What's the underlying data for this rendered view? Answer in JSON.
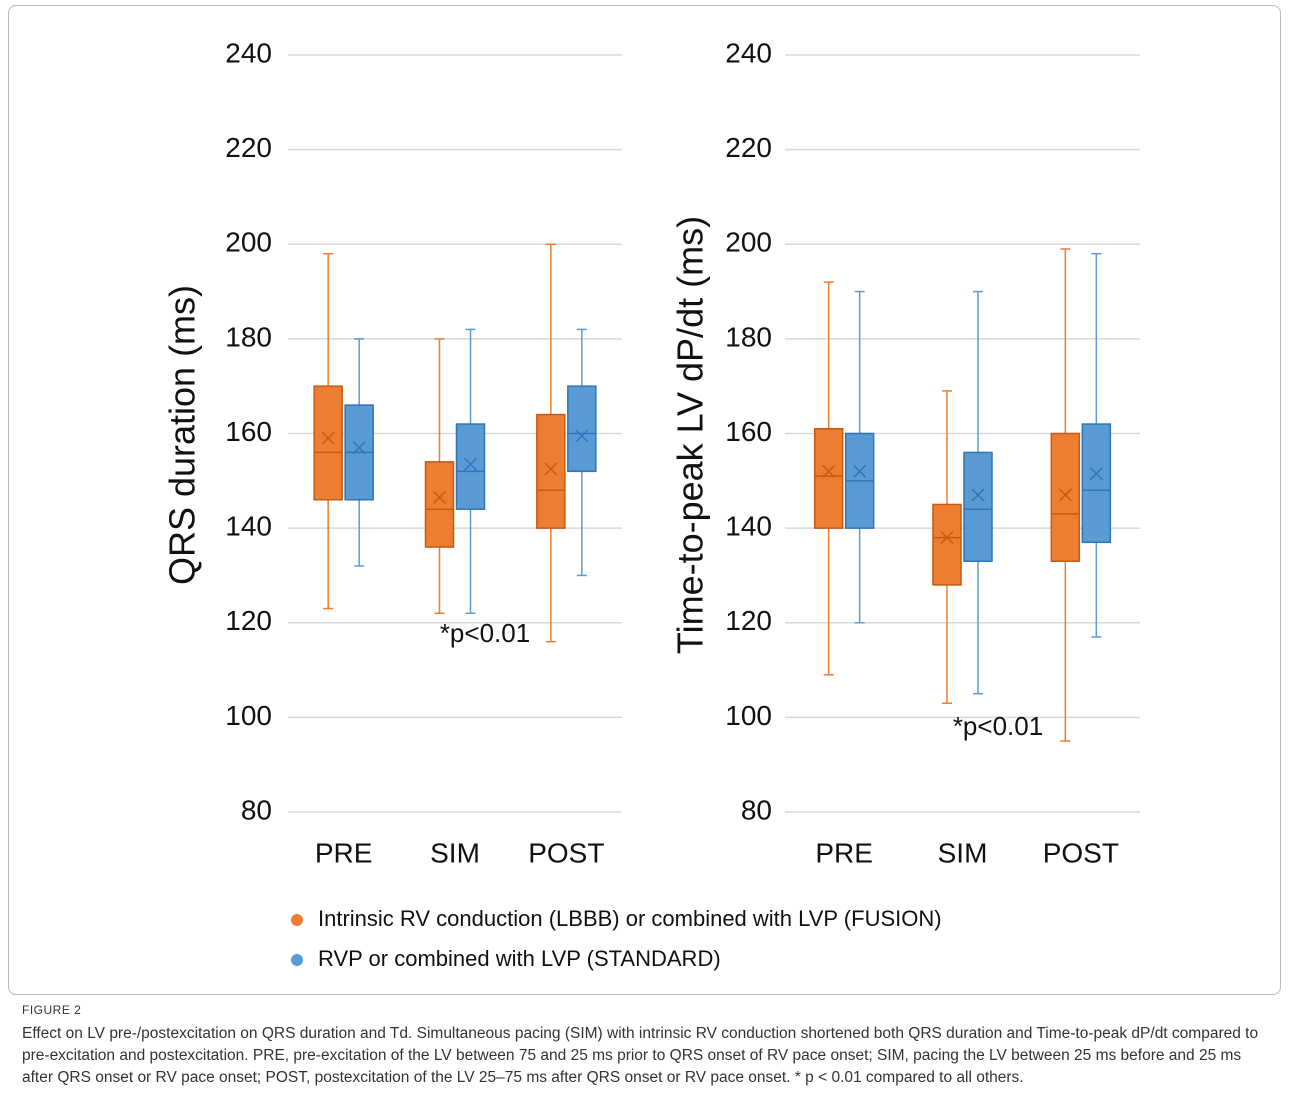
{
  "chart_data": [
    {
      "type": "box",
      "ylabel": "QRS duration (ms)",
      "categories": [
        "PRE",
        "SIM",
        "POST"
      ],
      "ylim": [
        80,
        240
      ],
      "yticks": [
        80,
        100,
        120,
        140,
        160,
        180,
        200,
        220,
        240
      ],
      "grid": true,
      "annotation": "*p<0.01",
      "series": [
        {
          "color": "#ed7d31",
          "min": [
            123,
            122,
            116
          ],
          "q1": [
            146,
            136,
            140
          ],
          "median": [
            156,
            144,
            148
          ],
          "q3": [
            170,
            154,
            164
          ],
          "max": [
            198,
            180,
            200
          ],
          "mean": [
            159,
            146.5,
            152.5
          ]
        },
        {
          "color": "#5b9bd5",
          "min": [
            132,
            122,
            130
          ],
          "q1": [
            146,
            144,
            152
          ],
          "median": [
            156,
            152,
            160
          ],
          "q3": [
            166,
            162,
            170
          ],
          "max": [
            180,
            182,
            182
          ],
          "mean": [
            157,
            153.5,
            159.5
          ]
        }
      ]
    },
    {
      "type": "box",
      "ylabel": "Time-to-peak LV dP/dt (ms)",
      "categories": [
        "PRE",
        "SIM",
        "POST"
      ],
      "ylim": [
        80,
        240
      ],
      "yticks": [
        80,
        100,
        120,
        140,
        160,
        180,
        200,
        220,
        240
      ],
      "grid": true,
      "annotation": "*p<0.01",
      "series": [
        {
          "color": "#ed7d31",
          "min": [
            109,
            103,
            95
          ],
          "q1": [
            140,
            128,
            133
          ],
          "median": [
            151,
            138,
            143
          ],
          "q3": [
            161,
            145,
            160
          ],
          "max": [
            192,
            169,
            199
          ],
          "mean": [
            152,
            138,
            147
          ]
        },
        {
          "color": "#5b9bd5",
          "min": [
            120,
            105,
            117
          ],
          "q1": [
            140,
            133,
            137
          ],
          "median": [
            150,
            144,
            148
          ],
          "q3": [
            160,
            156,
            162
          ],
          "max": [
            190,
            190,
            198
          ],
          "mean": [
            152,
            147,
            151.5
          ]
        }
      ]
    }
  ],
  "legend": [
    {
      "name": "Intrinsic RV conduction (LBBB) or combined with LVP (FUSION)",
      "color": "#ed7d31"
    },
    {
      "name": "RVP or combined with LVP (STANDARD)",
      "color": "#5b9bd5"
    }
  ],
  "caption": {
    "label": "FIGURE 2",
    "text": "Effect on LV pre-/postexcitation on QRS duration and Td. Simultaneous pacing (SIM) with intrinsic RV conduction shortened both QRS duration and Time-to-peak dP/dt compared to pre-excitation and postexcitation. PRE, pre-excitation of the LV between 75 and 25 ms prior to QRS onset of RV pace onset; SIM, pacing the LV between 25 ms before and 25 ms after QRS onset or RV pace onset; POST, postexcitation of the LV 25–75 ms after QRS onset or RV pace onset. * p < 0.01 compared to all others."
  }
}
